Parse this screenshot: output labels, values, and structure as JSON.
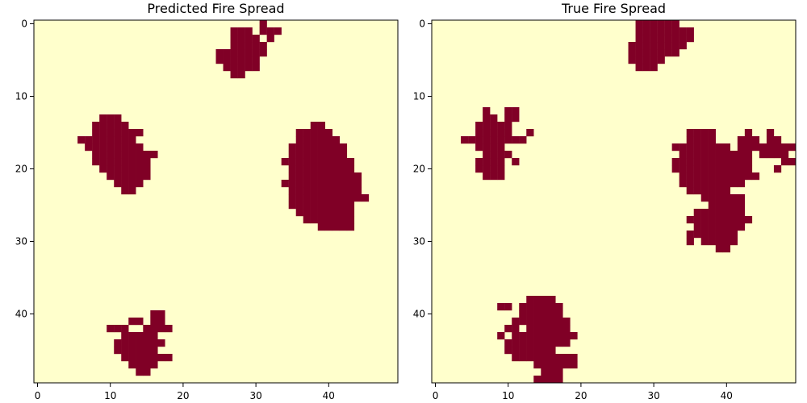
{
  "chart_data": [
    {
      "type": "heatmap",
      "title": "Predicted Fire Spread",
      "xlabel": "",
      "ylabel": "",
      "grid_size": 50,
      "xlim": [
        -0.5,
        49.5
      ],
      "ylim": [
        49.5,
        -0.5
      ],
      "x_ticks": [
        0,
        10,
        20,
        30,
        40
      ],
      "y_ticks": [
        0,
        10,
        20,
        30,
        40
      ],
      "grid": false,
      "colors": {
        "background": "#ffffcc",
        "fire": "#800026"
      },
      "burned_cells_by_row": {
        "0": [
          [
            31,
            31
          ]
        ],
        "1": [
          [
            27,
            29
          ],
          [
            31,
            33
          ]
        ],
        "2": [
          [
            27,
            30
          ],
          [
            32,
            32
          ]
        ],
        "3": [
          [
            27,
            31
          ]
        ],
        "4": [
          [
            25,
            31
          ]
        ],
        "5": [
          [
            25,
            30
          ]
        ],
        "6": [
          [
            26,
            30
          ]
        ],
        "7": [
          [
            27,
            28
          ]
        ],
        "13": [
          [
            9,
            11
          ]
        ],
        "14": [
          [
            8,
            12
          ],
          [
            38,
            39
          ]
        ],
        "15": [
          [
            8,
            14
          ],
          [
            36,
            40
          ]
        ],
        "16": [
          [
            6,
            13
          ],
          [
            36,
            41
          ]
        ],
        "17": [
          [
            7,
            14
          ],
          [
            35,
            42
          ]
        ],
        "18": [
          [
            8,
            16
          ],
          [
            35,
            42
          ]
        ],
        "19": [
          [
            8,
            15
          ],
          [
            34,
            43
          ]
        ],
        "20": [
          [
            9,
            15
          ],
          [
            35,
            43
          ]
        ],
        "21": [
          [
            10,
            15
          ],
          [
            35,
            44
          ]
        ],
        "22": [
          [
            11,
            14
          ],
          [
            34,
            44
          ]
        ],
        "23": [
          [
            12,
            13
          ],
          [
            35,
            44
          ]
        ],
        "24": [
          [
            35,
            45
          ]
        ],
        "25": [
          [
            35,
            43
          ]
        ],
        "26": [
          [
            36,
            43
          ]
        ],
        "27": [
          [
            37,
            43
          ]
        ],
        "28": [
          [
            39,
            43
          ]
        ],
        "40": [
          [
            16,
            17
          ]
        ],
        "41": [
          [
            13,
            14
          ],
          [
            16,
            17
          ]
        ],
        "42": [
          [
            10,
            12
          ],
          [
            15,
            18
          ]
        ],
        "43": [
          [
            12,
            16
          ]
        ],
        "44": [
          [
            11,
            17
          ]
        ],
        "45": [
          [
            11,
            16
          ]
        ],
        "46": [
          [
            12,
            18
          ]
        ],
        "47": [
          [
            13,
            16
          ]
        ],
        "48": [
          [
            14,
            15
          ]
        ]
      }
    },
    {
      "type": "heatmap",
      "title": "True Fire Spread",
      "xlabel": "",
      "ylabel": "",
      "grid_size": 50,
      "xlim": [
        -0.5,
        49.5
      ],
      "ylim": [
        49.5,
        -0.5
      ],
      "x_ticks": [
        0,
        10,
        20,
        30,
        40
      ],
      "y_ticks": [
        0,
        10,
        20,
        30,
        40
      ],
      "grid": false,
      "colors": {
        "background": "#ffffcc",
        "fire": "#800026"
      },
      "burned_cells_by_row": {
        "0": [
          [
            28,
            33
          ]
        ],
        "1": [
          [
            28,
            35
          ]
        ],
        "2": [
          [
            28,
            35
          ]
        ],
        "3": [
          [
            27,
            34
          ]
        ],
        "4": [
          [
            27,
            33
          ]
        ],
        "5": [
          [
            27,
            31
          ]
        ],
        "6": [
          [
            28,
            30
          ]
        ],
        "12": [
          [
            7,
            7
          ],
          [
            10,
            11
          ]
        ],
        "13": [
          [
            7,
            8
          ],
          [
            10,
            11
          ]
        ],
        "14": [
          [
            6,
            10
          ]
        ],
        "15": [
          [
            6,
            10
          ],
          [
            13,
            13
          ],
          [
            35,
            38
          ],
          [
            43,
            43
          ],
          [
            46,
            46
          ]
        ],
        "16": [
          [
            4,
            12
          ],
          [
            35,
            38
          ],
          [
            42,
            44
          ],
          [
            46,
            47
          ]
        ],
        "17": [
          [
            6,
            9
          ],
          [
            33,
            40
          ],
          [
            42,
            49
          ]
        ],
        "18": [
          [
            7,
            10
          ],
          [
            34,
            43
          ],
          [
            45,
            48
          ]
        ],
        "19": [
          [
            6,
            9
          ],
          [
            11,
            11
          ],
          [
            33,
            43
          ],
          [
            48,
            49
          ]
        ],
        "20": [
          [
            6,
            9
          ],
          [
            33,
            43
          ],
          [
            47,
            47
          ]
        ],
        "21": [
          [
            7,
            9
          ],
          [
            34,
            44
          ]
        ],
        "22": [
          [
            34,
            42
          ]
        ],
        "23": [
          [
            35,
            40
          ]
        ],
        "24": [
          [
            37,
            42
          ]
        ],
        "25": [
          [
            38,
            42
          ]
        ],
        "26": [
          [
            36,
            42
          ]
        ],
        "27": [
          [
            35,
            43
          ]
        ],
        "28": [
          [
            36,
            42
          ]
        ],
        "29": [
          [
            35,
            41
          ]
        ],
        "30": [
          [
            35,
            35
          ],
          [
            37,
            41
          ]
        ],
        "31": [
          [
            39,
            40
          ]
        ],
        "38": [
          [
            13,
            16
          ]
        ],
        "39": [
          [
            9,
            10
          ],
          [
            12,
            17
          ]
        ],
        "40": [
          [
            12,
            17
          ]
        ],
        "41": [
          [
            11,
            18
          ]
        ],
        "42": [
          [
            10,
            11
          ],
          [
            13,
            18
          ]
        ],
        "43": [
          [
            9,
            9
          ],
          [
            11,
            19
          ]
        ],
        "44": [
          [
            10,
            18
          ]
        ],
        "45": [
          [
            10,
            16
          ]
        ],
        "46": [
          [
            11,
            19
          ]
        ],
        "47": [
          [
            14,
            19
          ]
        ],
        "48": [
          [
            15,
            17
          ]
        ],
        "49": [
          [
            14,
            17
          ]
        ]
      }
    }
  ]
}
